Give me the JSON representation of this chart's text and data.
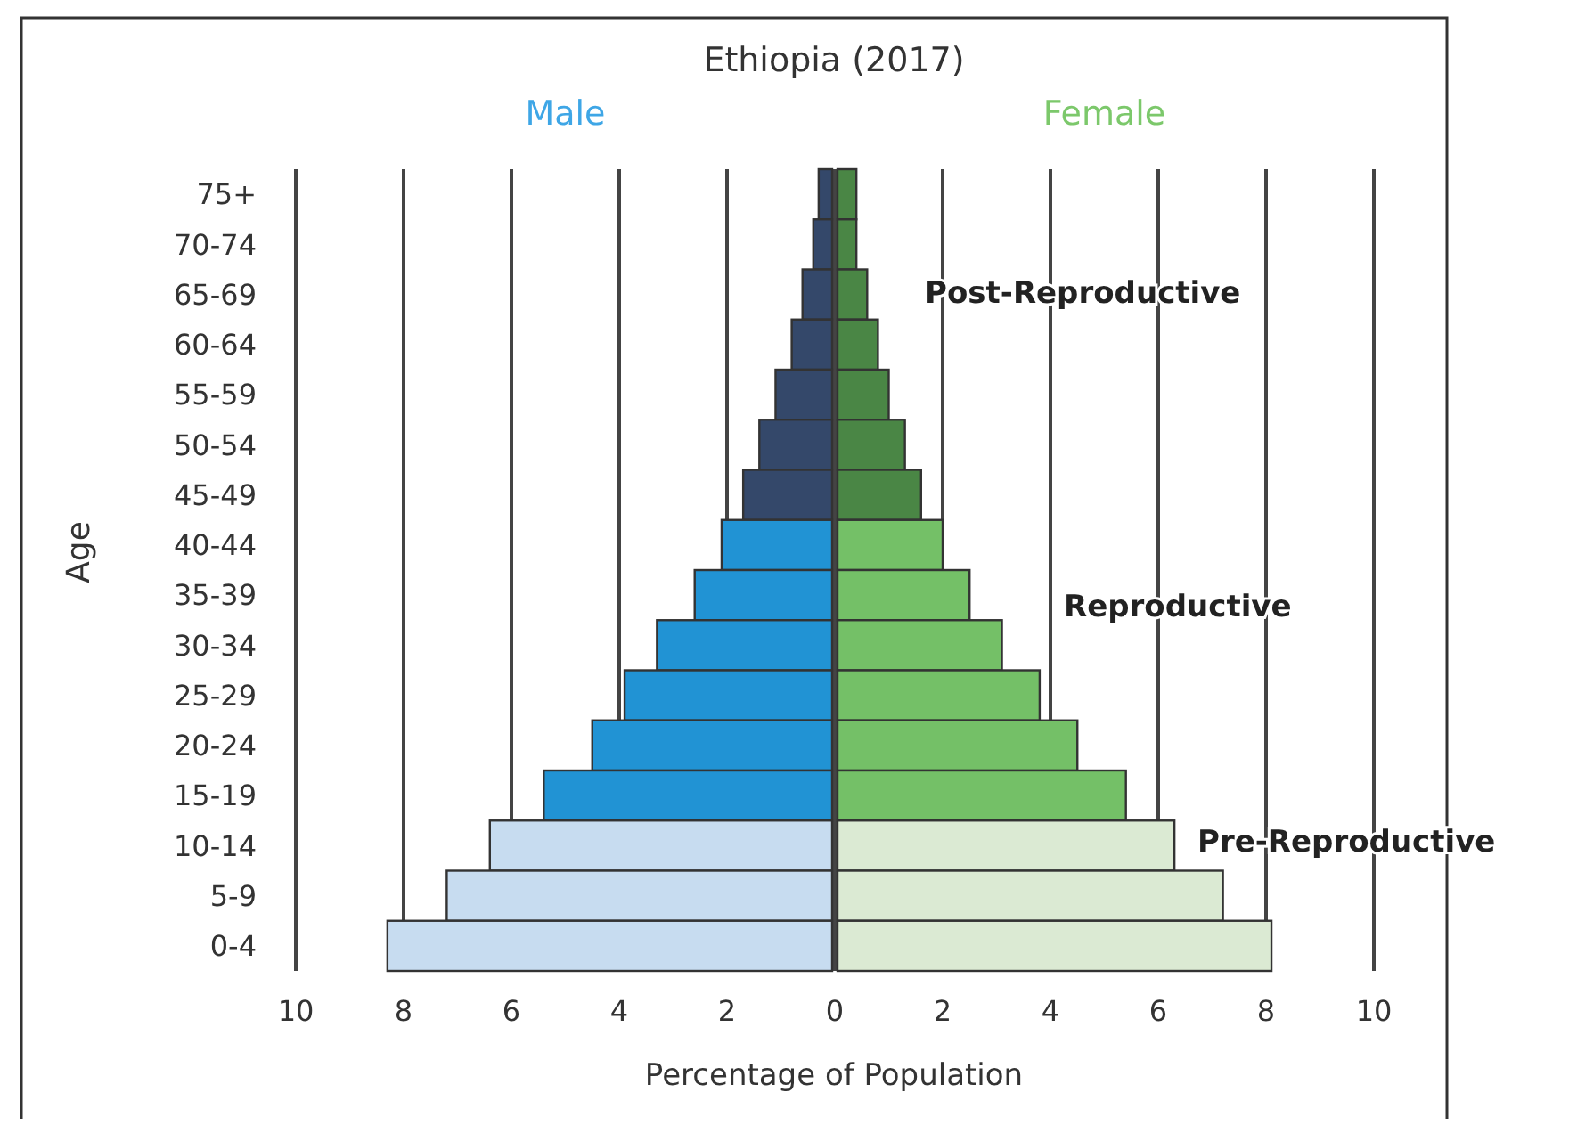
{
  "chart_data": {
    "type": "bar",
    "orientation": "horizontal",
    "title": "Ethiopia (2017)",
    "xlabel": "Percentage of Population",
    "ylabel": "Age",
    "categories": [
      "75+",
      "70-74",
      "65-69",
      "60-64",
      "55-59",
      "50-54",
      "45-49",
      "40-44",
      "35-39",
      "30-34",
      "25-29",
      "20-24",
      "15-19",
      "10-14",
      "5-9",
      "0-4"
    ],
    "series": [
      {
        "name": "Male",
        "color": "#3ea6e6",
        "values": [
          -0.3,
          -0.4,
          -0.6,
          -0.8,
          -1.1,
          -1.4,
          -1.7,
          -2.1,
          -2.6,
          -3.3,
          -3.9,
          -4.5,
          -5.4,
          -6.4,
          -7.2,
          -8.3
        ],
        "colors": [
          "#34486a",
          "#34486a",
          "#34486a",
          "#34486a",
          "#34486a",
          "#34486a",
          "#34486a",
          "#2193d4",
          "#2193d4",
          "#2193d4",
          "#2193d4",
          "#2193d4",
          "#2193d4",
          "#c7dcf0",
          "#c7dcf0",
          "#c7dcf0"
        ]
      },
      {
        "name": "Female",
        "color": "#7cc86b",
        "values": [
          0.4,
          0.4,
          0.6,
          0.8,
          1.0,
          1.3,
          1.6,
          2.0,
          2.5,
          3.1,
          3.8,
          4.5,
          5.4,
          6.3,
          7.2,
          8.1
        ],
        "colors": [
          "#4a8645",
          "#4a8645",
          "#4a8645",
          "#4a8645",
          "#4a8645",
          "#4a8645",
          "#4a8645",
          "#74c067",
          "#74c067",
          "#74c067",
          "#74c067",
          "#74c067",
          "#74c067",
          "#dbead3",
          "#dbead3",
          "#dbead3"
        ]
      }
    ],
    "xlim": [
      -10,
      10
    ],
    "xticks": [
      {
        "value": -10,
        "label": "10"
      },
      {
        "value": -8,
        "label": "8"
      },
      {
        "value": -6,
        "label": "6"
      },
      {
        "value": -4,
        "label": "4"
      },
      {
        "value": -2,
        "label": "2"
      },
      0,
      2,
      4,
      6,
      8,
      10
    ],
    "grid": "x",
    "legend": "top",
    "stacked": true,
    "annotations": [
      "Post-Reproductive",
      "Reproductive",
      "Pre-Reproductive"
    ]
  }
}
